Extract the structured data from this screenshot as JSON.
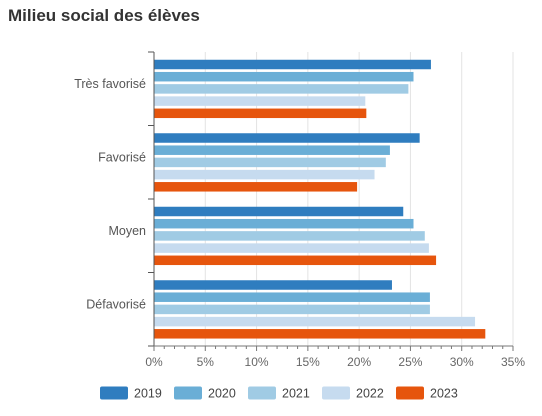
{
  "chart_data": {
    "type": "bar",
    "orientation": "horizontal",
    "title": "Milieu social des élèves",
    "categories": [
      "Très favorisé",
      "Favorisé",
      "Moyen",
      "Défavorisé"
    ],
    "series": [
      {
        "name": "2019",
        "color": "#2f7dbf",
        "values": [
          27.0,
          25.9,
          24.3,
          23.2
        ]
      },
      {
        "name": "2020",
        "color": "#6aaed6",
        "values": [
          25.3,
          23.0,
          25.3,
          26.9
        ]
      },
      {
        "name": "2021",
        "color": "#a0cbe4",
        "values": [
          24.8,
          22.6,
          26.4,
          26.9
        ]
      },
      {
        "name": "2022",
        "color": "#c6dbef",
        "values": [
          20.6,
          21.5,
          26.8,
          31.3
        ]
      },
      {
        "name": "2023",
        "color": "#e6550d",
        "values": [
          20.7,
          19.8,
          27.5,
          32.3
        ]
      }
    ],
    "xlim": [
      0,
      35
    ],
    "xticks": [
      "0%",
      "5%",
      "10%",
      "15%",
      "20%",
      "25%",
      "30%",
      "35%"
    ],
    "grid": true,
    "legend": "bottom"
  }
}
